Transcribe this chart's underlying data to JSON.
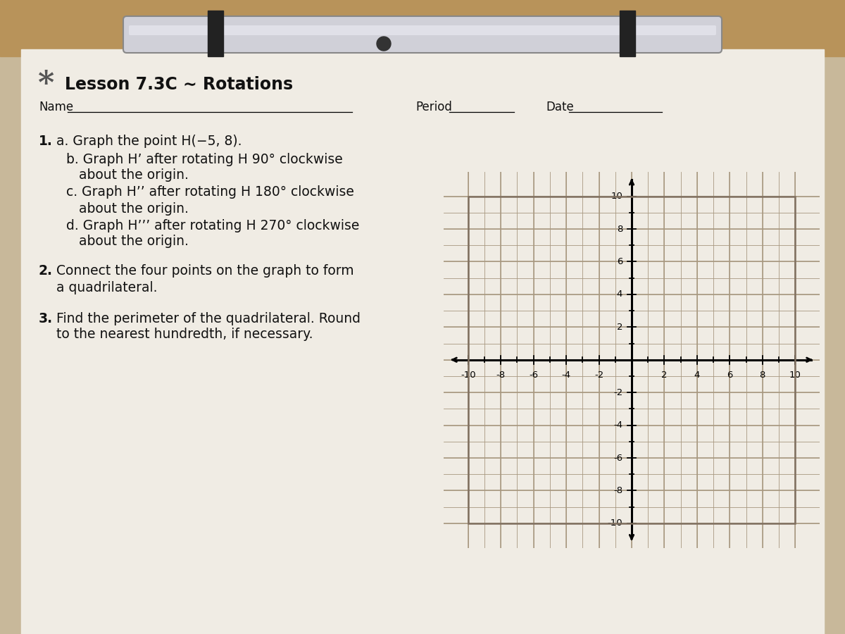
{
  "title": "Lesson 7.3C ∼ Rotations",
  "title_fontsize": 17,
  "name_label": "Name",
  "period_label": "Period",
  "date_label": "Date",
  "q1a": "a. Graph the point H(−5, 8).",
  "q1b": "b. Graph H’ after rotating H 90° clockwise",
  "q1b2": "   about the origin.",
  "q1c": "c. Graph H’’ after rotating H 180° clockwise",
  "q1c2": "   about the origin.",
  "q1d": "d. Graph H’’’ after rotating H 270° clockwise",
  "q1d2": "   about the origin.",
  "q2": "Connect the four points on the graph to form",
  "q2b": "a quadrilateral.",
  "q3": "Find the perimeter of the quadrilateral. Round",
  "q3b": "to the nearest hundredth, if necessary.",
  "grid_color": "#a89880",
  "grid_bg": "#d8cfc0",
  "axis_color": "#000000",
  "photo_bg": "#c8b89a",
  "wood_bg": "#b8935a",
  "paper_color": "#f0ece4",
  "text_color": "#111111"
}
